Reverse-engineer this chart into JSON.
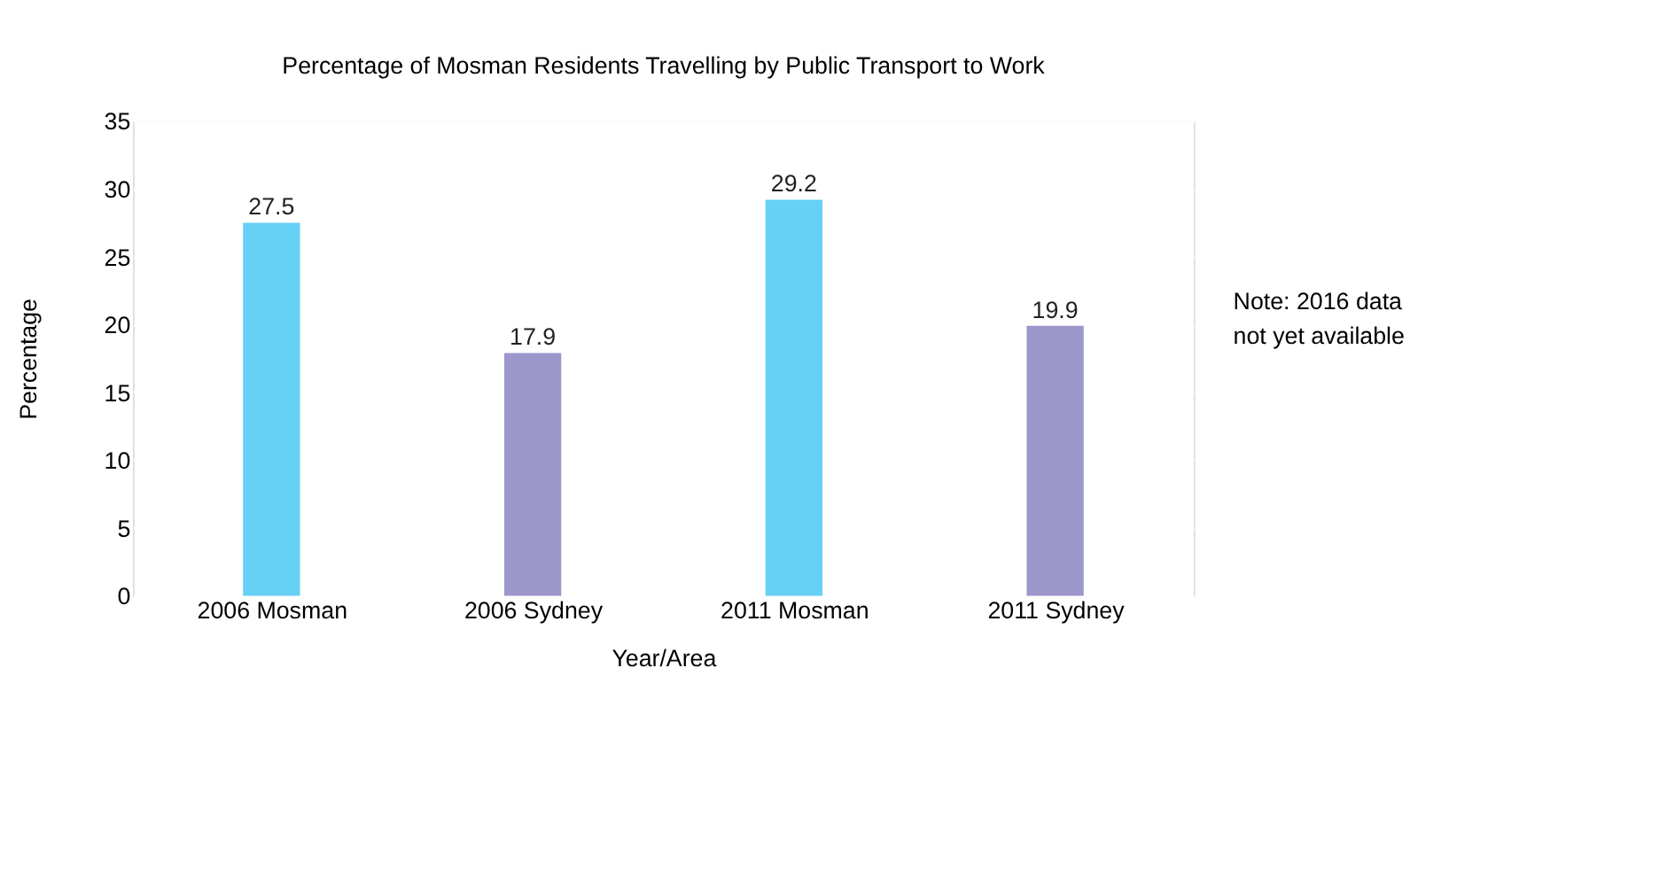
{
  "chart_data": {
    "type": "bar",
    "title": "Percentage of Mosman Residents Travelling by Public Transport to Work",
    "xlabel": "Year/Area",
    "ylabel": "Percentage",
    "categories": [
      "2006 Mosman",
      "2006 Sydney",
      "2011 Mosman",
      "2011 Sydney"
    ],
    "values": [
      27.5,
      17.9,
      29.2,
      19.9
    ],
    "colors": [
      "#66d0f5",
      "#9b97cb",
      "#66d0f5",
      "#9b97cb"
    ],
    "ylim": [
      0,
      35
    ],
    "yticks": [
      0,
      5,
      10,
      15,
      20,
      25,
      30,
      35
    ],
    "grid": "y",
    "data_labels": true,
    "annotations": [
      "Note: 2016 data not yet available"
    ]
  }
}
